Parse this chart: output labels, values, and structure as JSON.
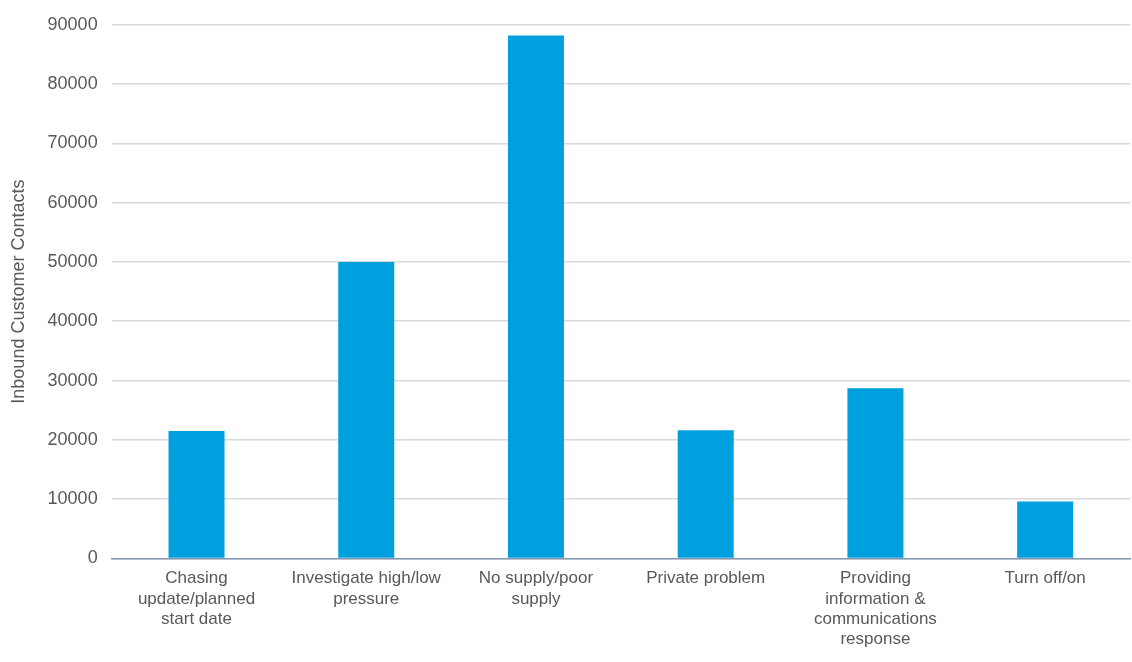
{
  "chart_data": {
    "type": "bar",
    "ylabel": "Inbound Customer Contacts",
    "categories": [
      "Chasing update/planned start date",
      "Investigate high/low pressure",
      "No supply/poor supply",
      "Private problem",
      "Providing information & communications response",
      "Turn off/on"
    ],
    "values": [
      21500,
      50000,
      88200,
      21600,
      28700,
      9600
    ],
    "color": "#00a0df",
    "ylim": [
      0,
      90000
    ],
    "yticks": [
      0,
      10000,
      20000,
      30000,
      40000,
      50000,
      60000,
      70000,
      80000,
      90000
    ],
    "grid": "y"
  }
}
